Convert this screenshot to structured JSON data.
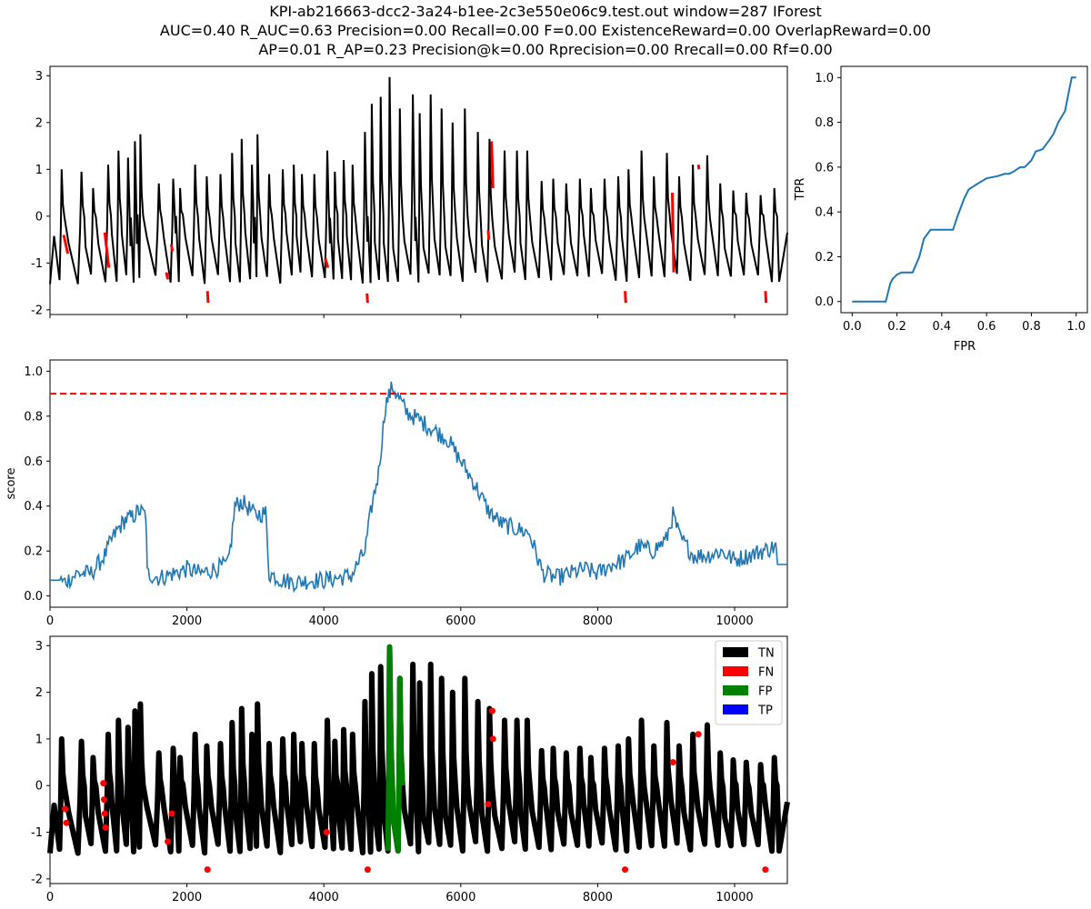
{
  "title": {
    "line1": "KPI-ab216663-dcc2-3a24-b1ee-2c3e550e06c9.test.out    window=287   IForest",
    "line2": "AUC=0.40     R_AUC=0.63     Precision=0.00     Recall=0.00     F=0.00     ExistenceReward=0.00   OverlapReward=0.00",
    "line3": "AP=0.01     R_AP=0.23     Precision@k=0.00     Rprecision=0.00     Rrecall=0.00     Rf=0.00"
  },
  "colors": {
    "signal": "#000000",
    "anomaly": "#ff0000",
    "score": "#1f77b4",
    "threshold": "#ff0000",
    "roc": "#1f77b4",
    "TN": "#000000",
    "FN": "#ff0000",
    "FP": "#008000",
    "TP": "#0000ff"
  },
  "chart_data": [
    {
      "id": "signal",
      "type": "line",
      "xlim": [
        0,
        10770
      ],
      "ylim": [
        -2.1,
        3.2
      ],
      "yticks": [
        -2,
        -1,
        0,
        1,
        2,
        3
      ],
      "xticks": [
        0,
        2000,
        4000,
        6000,
        8000,
        10000
      ],
      "show_xtick_labels": false,
      "grid": false,
      "description_series": "periodic KPI signal, ~62 cycles, range -1.85 to 2.97",
      "period": 172,
      "x_start": 0,
      "x_end": 10770,
      "peaks": [
        {
          "x": 170,
          "y": 1.0
        },
        {
          "x": 460,
          "y": 0.95
        },
        {
          "x": 630,
          "y": 0.6
        },
        {
          "x": 850,
          "y": 1.1
        },
        {
          "x": 1000,
          "y": 1.4
        },
        {
          "x": 1140,
          "y": 1.25
        },
        {
          "x": 1240,
          "y": 1.6
        },
        {
          "x": 1320,
          "y": 1.75
        },
        {
          "x": 1590,
          "y": 0.7
        },
        {
          "x": 1800,
          "y": 0.8
        },
        {
          "x": 1900,
          "y": 0.6
        },
        {
          "x": 2120,
          "y": 1.1
        },
        {
          "x": 2290,
          "y": 0.85
        },
        {
          "x": 2490,
          "y": 0.9
        },
        {
          "x": 2660,
          "y": 1.35
        },
        {
          "x": 2800,
          "y": 1.65
        },
        {
          "x": 2950,
          "y": 1.1
        },
        {
          "x": 3030,
          "y": 1.75
        },
        {
          "x": 3200,
          "y": 0.9
        },
        {
          "x": 3400,
          "y": 1.0
        },
        {
          "x": 3560,
          "y": 1.1
        },
        {
          "x": 3680,
          "y": 0.9
        },
        {
          "x": 3860,
          "y": 0.9
        },
        {
          "x": 4050,
          "y": 1.4
        },
        {
          "x": 4160,
          "y": 0.95
        },
        {
          "x": 4290,
          "y": 1.2
        },
        {
          "x": 4420,
          "y": 1.1
        },
        {
          "x": 4600,
          "y": 1.8
        },
        {
          "x": 4700,
          "y": 2.4
        },
        {
          "x": 4830,
          "y": 2.55
        },
        {
          "x": 4960,
          "y": 2.97
        },
        {
          "x": 5110,
          "y": 2.3
        },
        {
          "x": 5300,
          "y": 2.6
        },
        {
          "x": 5400,
          "y": 2.2
        },
        {
          "x": 5560,
          "y": 2.6
        },
        {
          "x": 5720,
          "y": 2.3
        },
        {
          "x": 5880,
          "y": 2.0
        },
        {
          "x": 6060,
          "y": 2.3
        },
        {
          "x": 6250,
          "y": 1.8
        },
        {
          "x": 6420,
          "y": 1.65
        },
        {
          "x": 6640,
          "y": 1.4
        },
        {
          "x": 6820,
          "y": 1.4
        },
        {
          "x": 6970,
          "y": 1.4
        },
        {
          "x": 7180,
          "y": 0.75
        },
        {
          "x": 7350,
          "y": 0.8
        },
        {
          "x": 7540,
          "y": 0.7
        },
        {
          "x": 7740,
          "y": 0.8
        },
        {
          "x": 7900,
          "y": 0.6
        },
        {
          "x": 8100,
          "y": 0.8
        },
        {
          "x": 8300,
          "y": 0.85
        },
        {
          "x": 8450,
          "y": 1.0
        },
        {
          "x": 8640,
          "y": 1.4
        },
        {
          "x": 8820,
          "y": 0.85
        },
        {
          "x": 9010,
          "y": 1.35
        },
        {
          "x": 9190,
          "y": 0.85
        },
        {
          "x": 9390,
          "y": 1.1
        },
        {
          "x": 9600,
          "y": 1.3
        },
        {
          "x": 9790,
          "y": 0.7
        },
        {
          "x": 9980,
          "y": 0.55
        },
        {
          "x": 10170,
          "y": 0.5
        },
        {
          "x": 10380,
          "y": 0.45
        },
        {
          "x": 10580,
          "y": 0.6
        }
      ],
      "anomaly_segments": [
        {
          "x": [
            200,
            260
          ],
          "y": [
            -0.4,
            -0.8
          ]
        },
        {
          "x": [
            800,
            860
          ],
          "y": [
            -0.35,
            -1.1
          ]
        },
        {
          "x": [
            1700,
            1720
          ],
          "y": [
            -1.2,
            -1.35
          ]
        },
        {
          "x": [
            1770,
            1790
          ],
          "y": [
            -0.6,
            -0.75
          ]
        },
        {
          "x": [
            2300,
            2310
          ],
          "y": [
            -1.6,
            -1.85
          ]
        },
        {
          "x": [
            4020,
            4060
          ],
          "y": [
            -0.9,
            -1.1
          ]
        },
        {
          "x": [
            4630,
            4640
          ],
          "y": [
            -1.65,
            -1.85
          ]
        },
        {
          "x": [
            6400,
            6410
          ],
          "y": [
            -0.3,
            -0.5
          ]
        },
        {
          "x": [
            6450,
            6470
          ],
          "y": [
            1.6,
            0.6
          ]
        },
        {
          "x": [
            8400,
            8410
          ],
          "y": [
            -1.6,
            -1.85
          ]
        },
        {
          "x": [
            9090,
            9110
          ],
          "y": [
            0.5,
            -1.2
          ]
        },
        {
          "x": [
            9470,
            9480
          ],
          "y": [
            1.1,
            1.0
          ]
        },
        {
          "x": [
            10450,
            10460
          ],
          "y": [
            -1.6,
            -1.85
          ]
        }
      ]
    },
    {
      "id": "roc",
      "type": "line",
      "xlabel": "FPR",
      "ylabel": "TPR",
      "xlim": [
        -0.05,
        1.05
      ],
      "ylim": [
        -0.05,
        1.05
      ],
      "xticks": [
        0.0,
        0.2,
        0.4,
        0.6,
        0.8,
        1.0
      ],
      "yticks": [
        0.0,
        0.2,
        0.4,
        0.6,
        0.8,
        1.0
      ],
      "x": [
        0.0,
        0.15,
        0.17,
        0.18,
        0.2,
        0.22,
        0.27,
        0.3,
        0.32,
        0.35,
        0.38,
        0.45,
        0.47,
        0.5,
        0.52,
        0.55,
        0.6,
        0.65,
        0.68,
        0.7,
        0.72,
        0.75,
        0.77,
        0.8,
        0.82,
        0.85,
        0.88,
        0.9,
        0.92,
        0.95,
        0.97,
        0.98,
        1.0
      ],
      "y": [
        0.0,
        0.0,
        0.08,
        0.1,
        0.12,
        0.13,
        0.13,
        0.2,
        0.28,
        0.32,
        0.32,
        0.32,
        0.38,
        0.46,
        0.5,
        0.52,
        0.55,
        0.56,
        0.57,
        0.57,
        0.58,
        0.6,
        0.6,
        0.63,
        0.67,
        0.68,
        0.72,
        0.75,
        0.8,
        0.85,
        0.95,
        1.0,
        1.0
      ]
    },
    {
      "id": "score",
      "type": "line",
      "ylabel": "score",
      "xlim": [
        0,
        10770
      ],
      "ylim": [
        -0.05,
        1.05
      ],
      "xticks": [
        0,
        2000,
        4000,
        6000,
        8000,
        10000
      ],
      "yticks": [
        0.0,
        0.2,
        0.4,
        0.6,
        0.8,
        1.0
      ],
      "threshold": 0.9,
      "x": [
        0,
        143,
        200,
        400,
        600,
        800,
        900,
        1000,
        1100,
        1200,
        1300,
        1400,
        1420,
        1600,
        1800,
        2000,
        2200,
        2400,
        2600,
        2650,
        2700,
        2800,
        3000,
        3150,
        3200,
        3400,
        3600,
        3800,
        4000,
        4200,
        4400,
        4600,
        4700,
        4800,
        4900,
        5000,
        5100,
        5200,
        5400,
        5600,
        5800,
        6000,
        6200,
        6400,
        6600,
        6800,
        7000,
        7200,
        7400,
        7600,
        7800,
        8000,
        8200,
        8400,
        8600,
        8800,
        9000,
        9100,
        9200,
        9400,
        9600,
        9800,
        10000,
        10200,
        10400,
        10600,
        10627,
        10770
      ],
      "y": [
        0.07,
        0.07,
        0.06,
        0.1,
        0.1,
        0.18,
        0.25,
        0.3,
        0.34,
        0.35,
        0.38,
        0.36,
        0.1,
        0.08,
        0.1,
        0.12,
        0.1,
        0.12,
        0.14,
        0.25,
        0.4,
        0.42,
        0.36,
        0.37,
        0.1,
        0.07,
        0.06,
        0.07,
        0.07,
        0.08,
        0.09,
        0.2,
        0.4,
        0.55,
        0.85,
        0.93,
        0.88,
        0.82,
        0.78,
        0.74,
        0.7,
        0.6,
        0.5,
        0.38,
        0.32,
        0.3,
        0.28,
        0.1,
        0.08,
        0.1,
        0.12,
        0.1,
        0.14,
        0.16,
        0.22,
        0.2,
        0.25,
        0.36,
        0.26,
        0.18,
        0.18,
        0.2,
        0.16,
        0.18,
        0.2,
        0.22,
        0.14,
        0.14
      ],
      "noise_amplitude": 0.04
    },
    {
      "id": "classification",
      "type": "scatter",
      "xlim": [
        0,
        10770
      ],
      "ylim": [
        -2.1,
        3.2
      ],
      "xticks": [
        0,
        2000,
        4000,
        6000,
        8000,
        10000
      ],
      "yticks": [
        -2,
        -1,
        0,
        1,
        2,
        3
      ],
      "legend": {
        "placement": "top-right",
        "entries": [
          "TN",
          "FN",
          "FP",
          "TP"
        ]
      },
      "fp_range": [
        4880,
        5150
      ],
      "fn_points": [
        {
          "x": 220,
          "y": -0.5
        },
        {
          "x": 240,
          "y": -0.8
        },
        {
          "x": 780,
          "y": 0.05
        },
        {
          "x": 790,
          "y": -0.3
        },
        {
          "x": 800,
          "y": -0.6
        },
        {
          "x": 810,
          "y": -0.9
        },
        {
          "x": 1720,
          "y": -1.2
        },
        {
          "x": 1780,
          "y": -0.6
        },
        {
          "x": 2300,
          "y": -1.8
        },
        {
          "x": 4040,
          "y": -1.0
        },
        {
          "x": 4640,
          "y": -1.8
        },
        {
          "x": 6400,
          "y": -0.4
        },
        {
          "x": 6460,
          "y": 1.6
        },
        {
          "x": 6470,
          "y": 1.0
        },
        {
          "x": 8400,
          "y": -1.8
        },
        {
          "x": 9100,
          "y": 0.5
        },
        {
          "x": 9470,
          "y": 1.1
        },
        {
          "x": 10450,
          "y": -1.8
        }
      ]
    }
  ]
}
